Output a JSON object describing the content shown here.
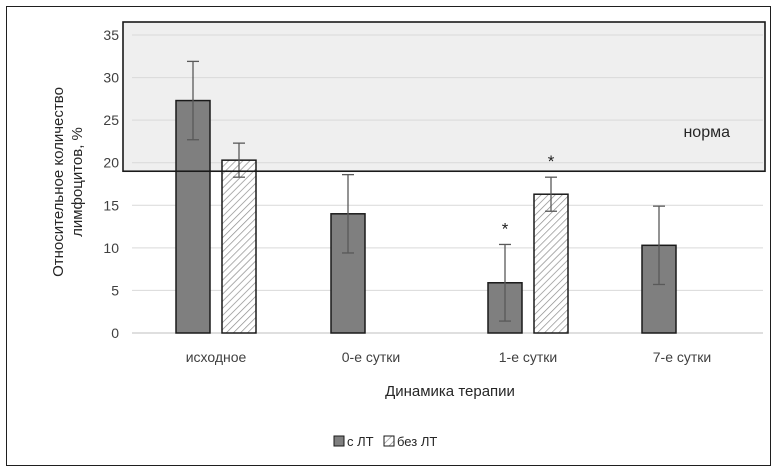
{
  "chart_data": {
    "type": "bar",
    "title": "",
    "xlabel": "Динамика терапии",
    "ylabel": "Относительное количество лимфоцитов, %",
    "ylabel_lines": [
      "Относительное количество",
      "лимфоцитов, %"
    ],
    "ylim": [
      0,
      35
    ],
    "yticks": [
      0,
      5,
      10,
      15,
      20,
      25,
      30,
      35
    ],
    "grid": true,
    "categories": [
      "исходное",
      "0-е сутки",
      "1-е сутки",
      "7-е сутки"
    ],
    "series": [
      {
        "name": "с ЛТ",
        "values": [
          27.3,
          14.0,
          5.9,
          10.3
        ],
        "error": [
          4.6,
          4.6,
          4.5,
          4.6
        ],
        "color": "#7f7f7f",
        "pattern": "solid"
      },
      {
        "name": "без ЛТ",
        "values": [
          20.3,
          null,
          16.3,
          null
        ],
        "error": [
          2.0,
          null,
          2.0,
          null
        ],
        "color": "#ffffff",
        "pattern": "hatched"
      }
    ],
    "reference_band": {
      "label": "норма",
      "range": [
        19,
        35
      ],
      "color": "#efefef"
    },
    "annotations": [
      {
        "text": "*",
        "category": "1-е сутки",
        "series": "с ЛТ"
      },
      {
        "text": "*",
        "category": "1-е сутки",
        "series": "без ЛТ"
      }
    ],
    "legend_position": "bottom"
  }
}
